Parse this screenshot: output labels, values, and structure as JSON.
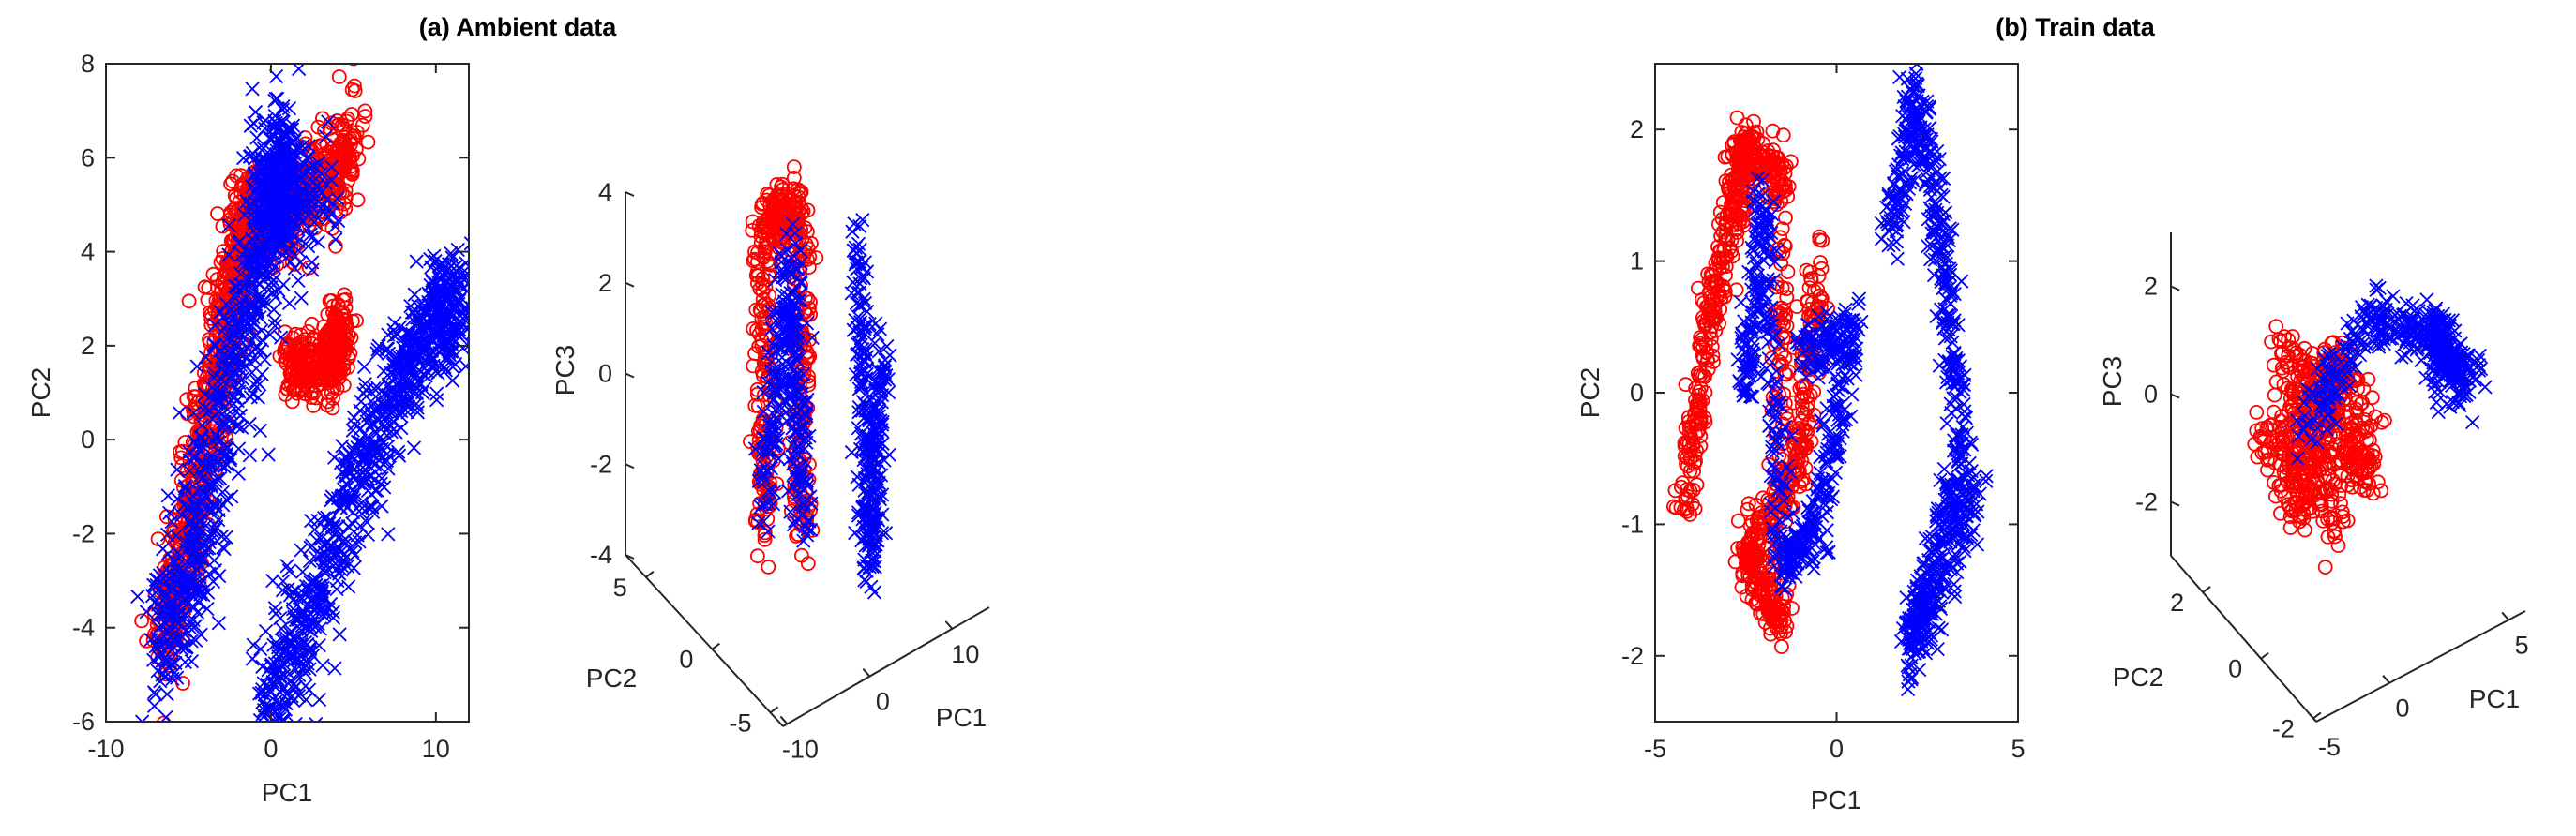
{
  "chart_data": [
    {
      "type": "scatter",
      "panel": "2d",
      "title": "(a) Ambient data",
      "xlabel": "PC1",
      "ylabel": "PC2",
      "xlim": [
        -10,
        12
      ],
      "ylim": [
        -6,
        8
      ],
      "xticks": [
        -10,
        0,
        10
      ],
      "yticks": [
        -6,
        -4,
        -2,
        0,
        2,
        4,
        6,
        8
      ],
      "grid": false,
      "legend": "none",
      "series": [
        {
          "marker": "circle",
          "color": "#ff0000",
          "clusters": [
            {
              "points": [
                [
                  -6.5,
                  -4.3
                ],
                [
                  -5,
                  -2
                ],
                [
                  -3.5,
                  1
                ],
                [
                  -2.2,
                  3.5
                ],
                [
                  -1.5,
                  4.8
                ],
                [
                  0,
                  4.6
                ],
                [
                  2.5,
                  5.4
                ],
                [
                  5,
                  6.3
                ]
              ],
              "spread": 0.55
            },
            {
              "points": [
                [
                  1,
                  1.6
                ],
                [
                  3.5,
                  1.5
                ],
                [
                  4.5,
                  2.5
                ]
              ],
              "spread": 0.4
            }
          ]
        },
        {
          "marker": "x",
          "color": "#0000ff",
          "clusters": [
            {
              "points": [
                [
                  -6.8,
                  -4.6
                ],
                [
                  -5,
                  -2.5
                ],
                [
                  -3,
                  0.5
                ],
                [
                  -1,
                  3
                ],
                [
                  0.5,
                  6.3
                ],
                [
                  0,
                  4.5
                ],
                [
                  3,
                  5.5
                ]
              ],
              "spread": 0.8
            },
            {
              "points": [
                [
                  0,
                  -5.6
                ],
                [
                  2,
                  -4
                ],
                [
                  5,
                  -1
                ],
                [
                  8,
                  1.5
                ],
                [
                  10,
                  2.5
                ],
                [
                  11.5,
                  3.3
                ]
              ],
              "spread": 0.7
            }
          ]
        }
      ]
    },
    {
      "type": "scatter",
      "panel": "3d",
      "title": "",
      "xlabel": "PC1",
      "ylabel": "PC2",
      "zlabel": "PC3",
      "xticks": [
        -10,
        0,
        10
      ],
      "yticks": [
        -5,
        0,
        5
      ],
      "zticks": [
        -4,
        -2,
        0,
        2,
        4
      ],
      "zlim": [
        -4,
        4
      ],
      "grid": false,
      "legend": "none",
      "series": [
        {
          "marker": "circle",
          "color": "#ff0000",
          "clusters": [
            {
              "points": [
                [
                  -3,
                  -1,
                  -3.6
                ],
                [
                  -3,
                  -1,
                  3.4
                ],
                [
                  0,
                  0,
                  3.6
                ],
                [
                  0,
                  0,
                  -3.7
                ]
              ],
              "spread": 0.7
            }
          ]
        },
        {
          "marker": "x",
          "color": "#0000ff",
          "clusters": [
            {
              "points": [
                [
                  -3,
                  -1,
                  -3
                ],
                [
                  -1,
                  0,
                  2.5
                ],
                [
                  0,
                  0,
                  -3.5
                ]
              ],
              "spread": 0.7
            },
            {
              "points": [
                [
                  6,
                  -3,
                  2.8
                ],
                [
                  7,
                  -3,
                  -4.8
                ],
                [
                  8,
                  -3,
                  0
                ]
              ],
              "spread": 0.6
            }
          ]
        }
      ]
    },
    {
      "type": "scatter",
      "panel": "2d",
      "title": "(b) Train data",
      "xlabel": "PC1",
      "ylabel": "PC2",
      "xlim": [
        -5,
        5
      ],
      "ylim": [
        -2.5,
        2.5
      ],
      "xticks": [
        -5,
        0,
        5
      ],
      "yticks": [
        -2,
        -1,
        0,
        1,
        2
      ],
      "grid": false,
      "legend": "none",
      "series": [
        {
          "marker": "circle",
          "color": "#ff0000",
          "clusters": [
            {
              "points": [
                [
                  -4.2,
                  -0.9
                ],
                [
                  -3.5,
                  0.5
                ],
                [
                  -2.8,
                  1.4
                ],
                [
                  -2.5,
                  1.9
                ],
                [
                  -1.5,
                  1.6
                ],
                [
                  -1.5,
                  -1.8
                ],
                [
                  -2.5,
                  -1.2
                ],
                [
                  -1,
                  -0.5
                ],
                [
                  -0.5,
                  1
                ]
              ],
              "spread": 0.35
            }
          ]
        },
        {
          "marker": "x",
          "color": "#0000ff",
          "clusters": [
            {
              "points": [
                [
                  -2.5,
                  0
                ],
                [
                  -2,
                  1.5
                ],
                [
                  -1.5,
                  -1.3
                ],
                [
                  -0.5,
                  -1
                ],
                [
                  0.5,
                  0.5
                ],
                [
                  -1,
                  0.3
                ]
              ],
              "spread": 0.35
            },
            {
              "points": [
                [
                  1.5,
                  1.2
                ],
                [
                  2.2,
                  2.3
                ],
                [
                  3,
                  1
                ],
                [
                  3.5,
                  -0.5
                ],
                [
                  2.5,
                  -1.5
                ],
                [
                  2,
                  -2
                ],
                [
                  4,
                  -0.7
                ]
              ],
              "spread": 0.4
            }
          ]
        }
      ]
    },
    {
      "type": "scatter",
      "panel": "3d",
      "title": "",
      "xlabel": "PC1",
      "ylabel": "PC2",
      "zlabel": "PC3",
      "xticks": [
        -5,
        0,
        5
      ],
      "yticks": [
        -2,
        0,
        2
      ],
      "zticks": [
        -2,
        0,
        2
      ],
      "zlim": [
        -3,
        3
      ],
      "grid": false,
      "legend": "none",
      "series": [
        {
          "marker": "circle",
          "color": "#ff0000",
          "clusters": [
            {
              "points": [
                [
                  -2,
                  0,
                  0
                ],
                [
                  -1,
                  0,
                  -2
                ],
                [
                  0,
                  0,
                  1
                ],
                [
                  1,
                  0,
                  -2
                ],
                [
                  -1.5,
                  0,
                  1.5
                ],
                [
                  0,
                  0,
                  -3
                ]
              ],
              "spread": 0.6
            }
          ]
        },
        {
          "marker": "x",
          "color": "#0000ff",
          "clusters": [
            {
              "points": [
                [
                  -1,
                  0,
                  -0.5
                ],
                [
                  1,
                  0,
                  1.6
                ],
                [
                  3,
                  0,
                  0.8
                ],
                [
                  4,
                  0,
                  -0.6
                ],
                [
                  3,
                  0,
                  1.2
                ]
              ],
              "spread": 0.5
            }
          ]
        }
      ]
    }
  ]
}
